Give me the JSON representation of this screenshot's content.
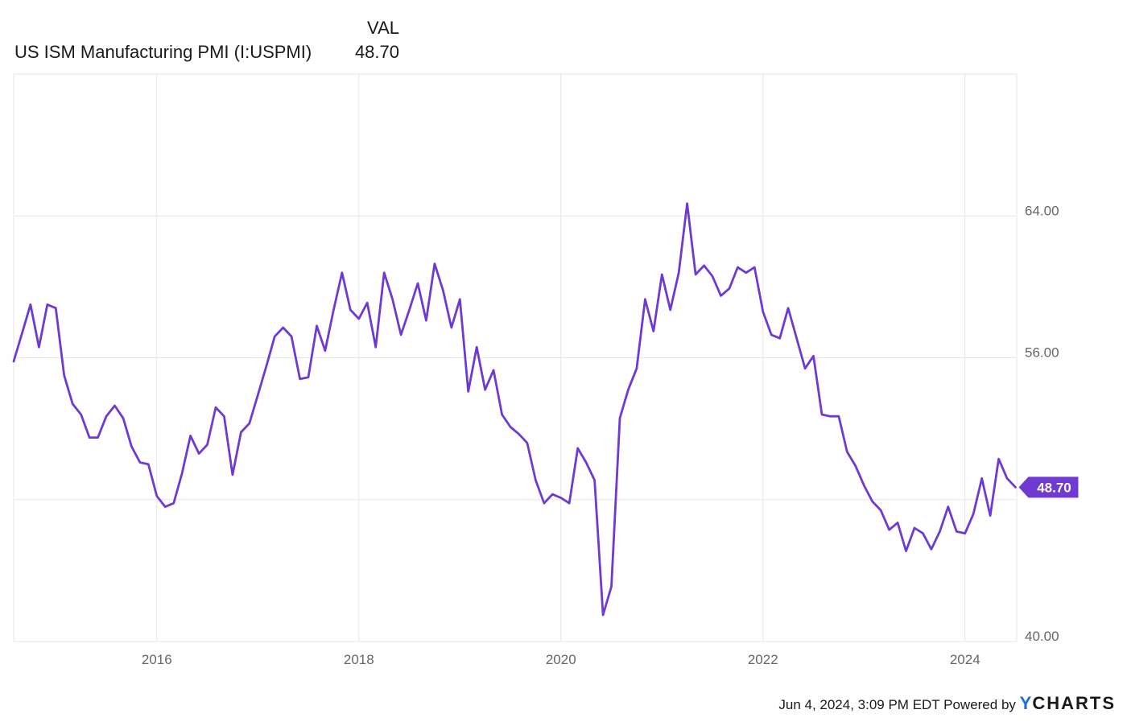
{
  "legend": {
    "column_header": "VAL",
    "series_name": "US ISM Manufacturing PMI (I:USPMI)",
    "series_value": "48.70"
  },
  "footer": {
    "timestamp": "Jun 4, 2024, 3:09 PM EDT",
    "powered_by": "Powered by",
    "brand_y": "Y",
    "brand_rest": "CHARTS"
  },
  "colors": {
    "line": "#6f3ad1",
    "grid": "#e6e6e6",
    "axis_text": "#666666",
    "badge": "#6f3ad1"
  },
  "chart_data": {
    "type": "line",
    "series": [
      {
        "name": "US ISM Manufacturing PMI (I:USPMI)",
        "x_start": "2014-08",
        "frequency": "monthly",
        "values": [
          55.8,
          57.4,
          59.0,
          56.6,
          59.0,
          58.8,
          55.0,
          53.4,
          52.8,
          51.5,
          51.5,
          52.7,
          53.3,
          52.6,
          51.0,
          50.1,
          50.0,
          48.2,
          47.6,
          47.8,
          49.5,
          51.6,
          50.6,
          51.1,
          53.2,
          52.7,
          49.4,
          51.8,
          52.3,
          53.9,
          55.5,
          57.2,
          57.7,
          57.2,
          54.8,
          54.9,
          57.8,
          56.4,
          58.7,
          60.8,
          58.7,
          58.2,
          59.1,
          56.6,
          60.8,
          59.3,
          57.3,
          58.7,
          60.2,
          58.1,
          61.3,
          59.8,
          57.7,
          59.3,
          54.1,
          56.6,
          54.2,
          55.3,
          52.8,
          52.1,
          51.7,
          51.2,
          49.1,
          47.8,
          48.3,
          48.1,
          47.8,
          50.9,
          50.1,
          49.1,
          41.5,
          43.1,
          52.6,
          54.2,
          55.4,
          59.3,
          57.5,
          60.7,
          58.7,
          60.8,
          64.7,
          60.7,
          61.2,
          60.6,
          59.5,
          59.9,
          61.1,
          60.8,
          61.1,
          58.6,
          57.3,
          57.1,
          58.8,
          57.1,
          55.4,
          56.1,
          52.8,
          52.7,
          52.7,
          50.7,
          49.9,
          48.8,
          47.9,
          47.4,
          46.3,
          46.7,
          45.1,
          46.4,
          46.1,
          45.2,
          46.2,
          47.6,
          46.2,
          46.1,
          47.2,
          49.2,
          47.1,
          50.3,
          49.2,
          48.7
        ]
      }
    ],
    "x_ticks": [
      "2016",
      "2018",
      "2020",
      "2022",
      "2024"
    ],
    "y_ticks": [
      "40.00",
      "56.00",
      "64.00"
    ],
    "y_range": [
      40,
      72
    ],
    "last_value_label": "48.70",
    "grid": true,
    "xlabel": "",
    "ylabel": "",
    "title": ""
  }
}
